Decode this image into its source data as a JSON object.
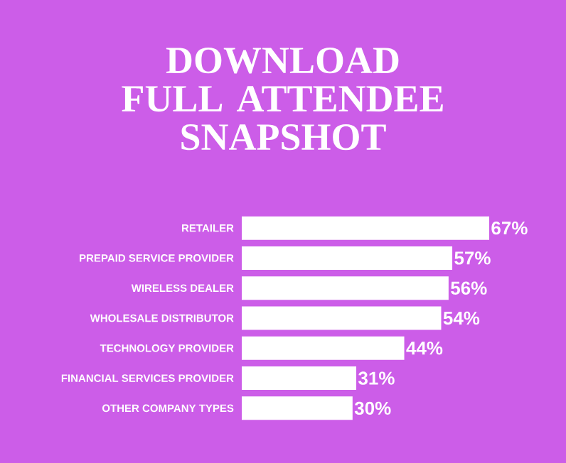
{
  "chart_data": {
    "type": "bar",
    "orientation": "horizontal",
    "title": "DOWNLOAD FULL ATTENDEE SNAPSHOT",
    "categories": [
      "RETAILER",
      "PREPAID SERVICE PROVIDER",
      "WIRELESS DEALER",
      "WHOLESALE DISTRIBUTOR",
      "TECHNOLOGY PROVIDER",
      "FINANCIAL SERVICES PROVIDER",
      "OTHER COMPANY TYPES"
    ],
    "values": [
      67,
      57,
      56,
      54,
      44,
      31,
      30
    ],
    "value_labels": [
      "67%",
      "57%",
      "56%",
      "54%",
      "44%",
      "31%",
      "30%"
    ],
    "color": "#ffffff"
  }
}
